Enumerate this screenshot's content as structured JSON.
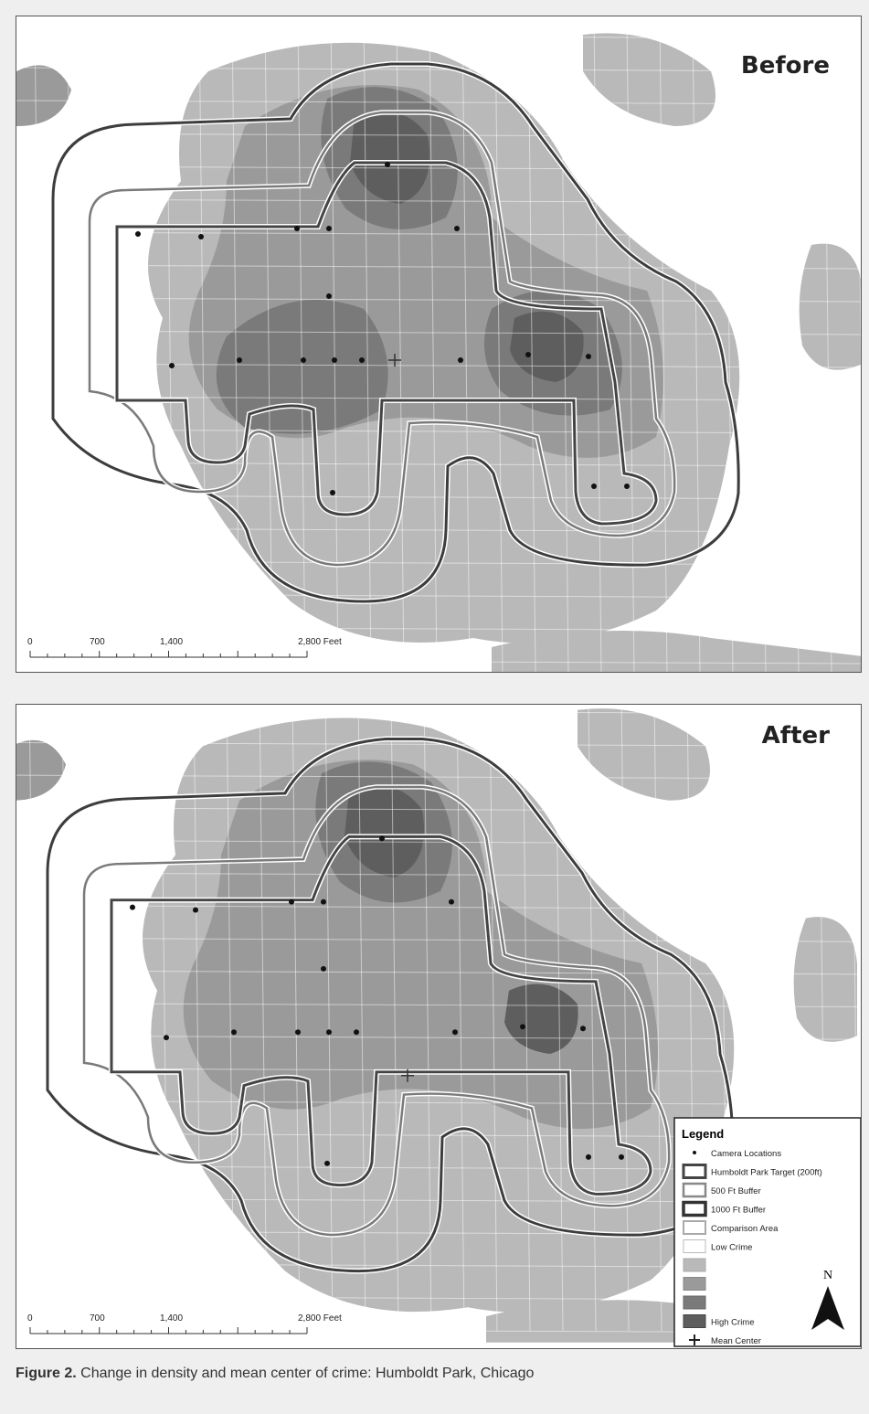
{
  "maps": [
    {
      "label": "Before",
      "scale_labels": [
        "0",
        "700",
        "1,400",
        "2,800 Feet"
      ]
    },
    {
      "label": "After",
      "scale_labels": [
        "0",
        "700",
        "1,400",
        "2,800 Feet"
      ]
    }
  ],
  "legend": {
    "title": "Legend",
    "items": [
      "Camera Locations",
      "Humboldt Park Target (200ft)",
      "500 Ft Buffer",
      "1000 Ft Buffer",
      "Comparison Area",
      "Low Crime",
      "High Crime",
      "Mean Center"
    ],
    "north": "N"
  },
  "caption": {
    "label": "Figure 2.",
    "text": "Change in density and mean center of crime: Humboldt Park, Chicago"
  }
}
